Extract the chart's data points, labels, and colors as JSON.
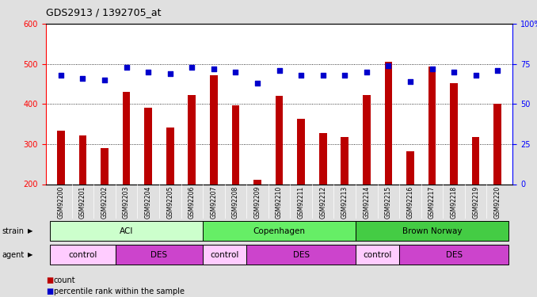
{
  "title": "GDS2913 / 1392705_at",
  "samples": [
    "GSM92200",
    "GSM92201",
    "GSM92202",
    "GSM92203",
    "GSM92204",
    "GSM92205",
    "GSM92206",
    "GSM92207",
    "GSM92208",
    "GSM92209",
    "GSM92210",
    "GSM92211",
    "GSM92212",
    "GSM92213",
    "GSM92214",
    "GSM92215",
    "GSM92216",
    "GSM92217",
    "GSM92218",
    "GSM92219",
    "GSM92220"
  ],
  "counts": [
    333,
    322,
    289,
    430,
    390,
    342,
    422,
    472,
    396,
    210,
    420,
    362,
    327,
    318,
    422,
    505,
    281,
    494,
    452,
    318,
    400
  ],
  "percentiles": [
    68,
    66,
    65,
    73,
    70,
    69,
    73,
    72,
    70,
    63,
    71,
    68,
    68,
    68,
    70,
    74,
    64,
    72,
    70,
    68,
    71
  ],
  "bar_color": "#bb0000",
  "dot_color": "#0000cc",
  "ylim_left": [
    200,
    600
  ],
  "ylim_right": [
    0,
    100
  ],
  "yticks_left": [
    200,
    300,
    400,
    500,
    600
  ],
  "yticks_right": [
    0,
    25,
    50,
    75,
    100
  ],
  "grid_values": [
    300,
    400,
    500
  ],
  "strain_groups": [
    {
      "label": "ACI",
      "start": 0,
      "end": 6,
      "color": "#ccffcc"
    },
    {
      "label": "Copenhagen",
      "start": 7,
      "end": 13,
      "color": "#66ee66"
    },
    {
      "label": "Brown Norway",
      "start": 14,
      "end": 20,
      "color": "#44cc44"
    }
  ],
  "agent_groups": [
    {
      "label": "control",
      "start": 0,
      "end": 2,
      "color": "#ffccff"
    },
    {
      "label": "DES",
      "start": 3,
      "end": 6,
      "color": "#cc44cc"
    },
    {
      "label": "control",
      "start": 7,
      "end": 8,
      "color": "#ffccff"
    },
    {
      "label": "DES",
      "start": 9,
      "end": 13,
      "color": "#cc44cc"
    },
    {
      "label": "control",
      "start": 14,
      "end": 15,
      "color": "#ffccff"
    },
    {
      "label": "DES",
      "start": 16,
      "end": 20,
      "color": "#cc44cc"
    }
  ],
  "bg_color": "#e0e0e0",
  "plot_bg_color": "#ffffff",
  "xlabel_bg_color": "#c8c8c8"
}
